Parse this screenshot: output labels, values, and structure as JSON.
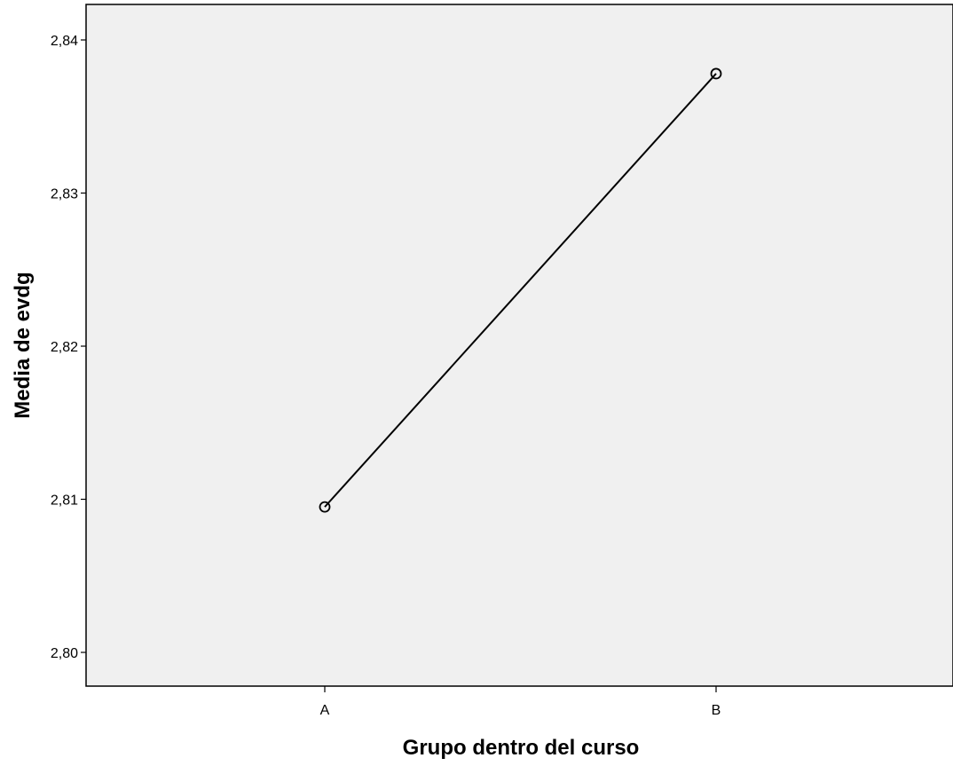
{
  "chart_data": {
    "type": "line",
    "categories": [
      "A",
      "B"
    ],
    "series": [
      {
        "values": [
          2.8095,
          2.8378
        ]
      }
    ],
    "xlabel": "Grupo dentro del curso",
    "ylabel": "Media de evdg",
    "ylim": [
      2.8,
      2.84
    ],
    "yticks": [
      2.8,
      2.81,
      2.82,
      2.83,
      2.84
    ],
    "ytick_labels": [
      "2,80",
      "2,81",
      "2,82",
      "2,83",
      "2,84"
    ],
    "grid": false,
    "legend": "none",
    "marker": "hollow-circle",
    "colors": {
      "plot_background": "#f0f0f0",
      "line": "#000000",
      "axis": "#000000"
    }
  }
}
